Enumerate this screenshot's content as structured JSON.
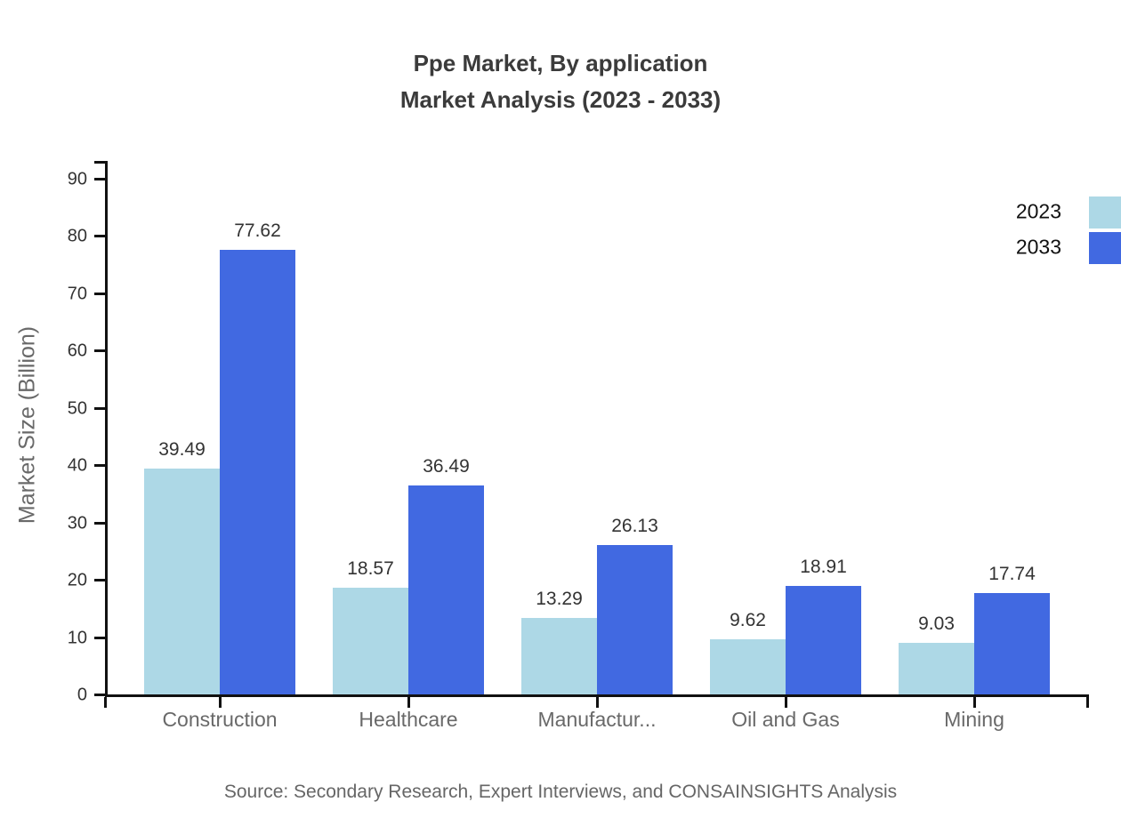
{
  "title": {
    "line1": "Ppe Market, By application",
    "line2": "Market Analysis (2023 - 2033)"
  },
  "source": "Source: Secondary Research, Expert Interviews, and CONSAINSIGHTS Analysis",
  "chart_data": {
    "type": "bar",
    "title": "Ppe Market, By application Market Analysis (2023 - 2033)",
    "categories": [
      "Construction",
      "Healthcare",
      "Manufactur...",
      "Oil and Gas",
      "Mining"
    ],
    "series": [
      {
        "name": "2023",
        "color": "#ADD8E6",
        "values": [
          39.49,
          18.57,
          13.29,
          9.62,
          9.03
        ]
      },
      {
        "name": "2033",
        "color": "#4169E1",
        "values": [
          77.62,
          36.49,
          26.13,
          18.91,
          17.74
        ]
      }
    ],
    "value_labels": [
      "39.49",
      "77.62",
      "18.57",
      "36.49",
      "13.29",
      "26.13",
      "9.62",
      "18.91",
      "9.03",
      "17.74"
    ],
    "xlabel": "",
    "ylabel": "Market Size (Billion)",
    "ylim": [
      0,
      90
    ],
    "yticks": [
      0,
      10,
      20,
      30,
      40,
      50,
      60,
      70,
      80,
      90
    ],
    "grid": false,
    "legend_position": "top-right",
    "axis_color": "#111111"
  }
}
